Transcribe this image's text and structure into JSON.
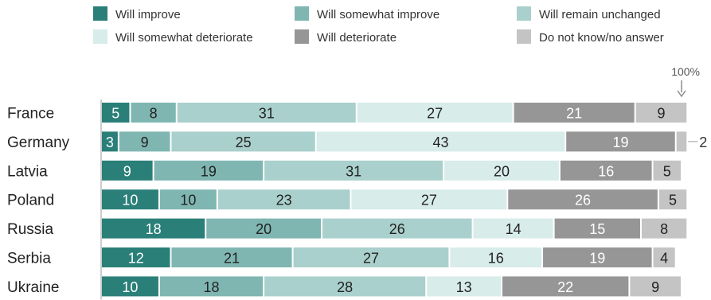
{
  "chart_data": {
    "type": "bar",
    "orientation": "horizontal",
    "stacked": true,
    "normalized": true,
    "categories": [
      "France",
      "Germany",
      "Latvia",
      "Poland",
      "Russia",
      "Serbia",
      "Ukraine"
    ],
    "series": [
      {
        "name": "Will improve",
        "color": "#2a7f78",
        "label_color": "#ffffff",
        "values": [
          5,
          3,
          9,
          10,
          18,
          12,
          10
        ]
      },
      {
        "name": "Will somewhat improve",
        "color": "#7fb6b2",
        "label_color": "#222222",
        "values": [
          8,
          9,
          19,
          10,
          20,
          21,
          18
        ]
      },
      {
        "name": "Will remain unchanged",
        "color": "#a9d0cc",
        "label_color": "#222222",
        "values": [
          31,
          25,
          31,
          23,
          26,
          27,
          28
        ]
      },
      {
        "name": "Will somewhat deteriorate",
        "color": "#d8ecea",
        "label_color": "#222222",
        "values": [
          27,
          43,
          20,
          27,
          14,
          16,
          13
        ]
      },
      {
        "name": "Will deteriorate",
        "color": "#969696",
        "label_color": "#ffffff",
        "values": [
          21,
          19,
          16,
          26,
          15,
          19,
          22
        ]
      },
      {
        "name": "Do not know/no answer",
        "color": "#c4c4c4",
        "label_color": "#222222",
        "values": [
          9,
          2,
          5,
          5,
          8,
          4,
          9
        ]
      }
    ],
    "xlim": [
      0,
      100
    ],
    "annotations": [
      {
        "text": "100%",
        "target": "end-of-scale"
      }
    ],
    "legend": {
      "placement": "top",
      "columns": 3
    }
  }
}
